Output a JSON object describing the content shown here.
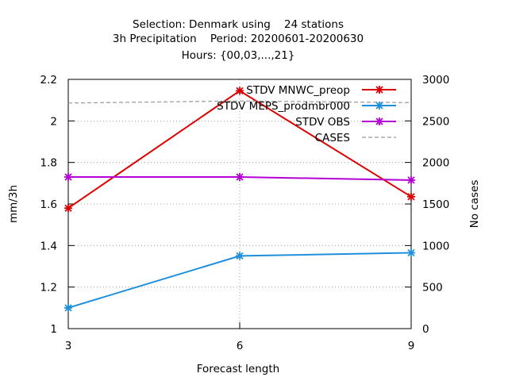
{
  "chart_data": {
    "type": "line",
    "title_lines": [
      "Selection: Denmark using    24 stations",
      "3h Precipitation    Period: 20200601-20200630",
      "Hours: {00,03,...,21}"
    ],
    "xlabel": "Forecast length",
    "ylabel": "mm/3h",
    "y2label": "No cases",
    "x": [
      3,
      6,
      9
    ],
    "xticks": [
      "3",
      "6",
      "9"
    ],
    "xlim": [
      3,
      9
    ],
    "ylim": [
      1,
      2.2
    ],
    "yticks": [
      "1",
      "1.2",
      "1.4",
      "1.6",
      "1.8",
      "2",
      "2.2"
    ],
    "y2lim": [
      0,
      3000
    ],
    "y2ticks": [
      "0",
      "500",
      "1000",
      "1500",
      "2000",
      "2500",
      "3000"
    ],
    "grid": true,
    "legend_position": "top-right",
    "series": [
      {
        "name": "STDV MNWC_preop",
        "values": [
          1.58,
          2.145,
          1.635
        ],
        "color": "#dd0000",
        "axis": "y1",
        "style": "solid",
        "marker": true
      },
      {
        "name": "STDV MEPS_prodmbr000",
        "values": [
          1.1,
          1.35,
          1.365
        ],
        "color": "#1f8fdc",
        "axis": "y1",
        "style": "solid",
        "marker": true
      },
      {
        "name": "STDV OBS",
        "values": [
          1.73,
          1.73,
          1.715
        ],
        "color": "#b400d4",
        "axis": "y1",
        "style": "solid",
        "marker": true
      },
      {
        "name": "CASES",
        "values": [
          2715,
          2740,
          2720
        ],
        "color": "#999999",
        "axis": "y2",
        "style": "dashed",
        "marker": false
      }
    ]
  }
}
